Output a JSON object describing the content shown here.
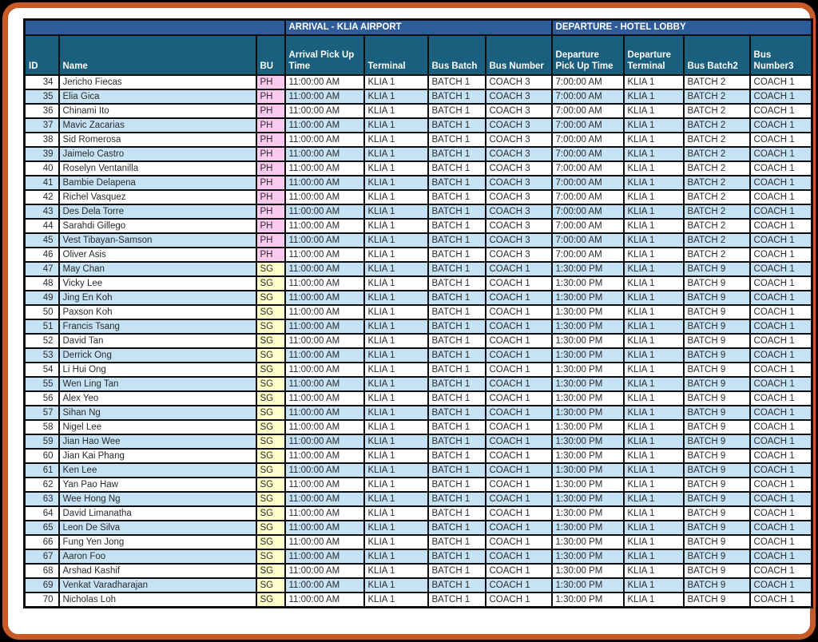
{
  "table": {
    "banner": {
      "arrival": "ARRIVAL - KLIA AIRPORT",
      "departure": "DEPARTURE - HOTEL LOBBY"
    },
    "columns": [
      "ID",
      "Name",
      "BU",
      "Arrival Pick Up Time",
      "Terminal",
      "Bus Batch",
      "Bus Number",
      "Departure Pick Up Time",
      "Departure Terminal",
      "Bus Batch2",
      "Bus Number3"
    ],
    "rows": [
      [
        34,
        "Jericho Fiecas",
        "PH",
        "11:00:00 AM",
        "KLIA 1",
        "BATCH 1",
        "COACH 3",
        "7:00:00 AM",
        "KLIA 1",
        "BATCH 2",
        "COACH 1"
      ],
      [
        35,
        "Elia Gica",
        "PH",
        "11:00:00 AM",
        "KLIA 1",
        "BATCH 1",
        "COACH 3",
        "7:00:00 AM",
        "KLIA 1",
        "BATCH 2",
        "COACH 1"
      ],
      [
        36,
        "Chinami Ito",
        "PH",
        "11:00:00 AM",
        "KLIA 1",
        "BATCH 1",
        "COACH 3",
        "7:00:00 AM",
        "KLIA 1",
        "BATCH 2",
        "COACH 1"
      ],
      [
        37,
        "Mavic Zacarias",
        "PH",
        "11:00:00 AM",
        "KLIA 1",
        "BATCH 1",
        "COACH 3",
        "7:00:00 AM",
        "KLIA 1",
        "BATCH 2",
        "COACH 1"
      ],
      [
        38,
        "Sid Romerosa",
        "PH",
        "11:00:00 AM",
        "KLIA 1",
        "BATCH 1",
        "COACH 3",
        "7:00:00 AM",
        "KLIA 1",
        "BATCH 2",
        "COACH 1"
      ],
      [
        39,
        "Jaimelo Castro",
        "PH",
        "11:00:00 AM",
        "KLIA 1",
        "BATCH 1",
        "COACH 3",
        "7:00:00 AM",
        "KLIA 1",
        "BATCH 2",
        "COACH 1"
      ],
      [
        40,
        "Roselyn Ventanilla",
        "PH",
        "11:00:00 AM",
        "KLIA 1",
        "BATCH 1",
        "COACH 3",
        "7:00:00 AM",
        "KLIA 1",
        "BATCH 2",
        "COACH 1"
      ],
      [
        41,
        "Bambie Delapena",
        "PH",
        "11:00:00 AM",
        "KLIA 1",
        "BATCH 1",
        "COACH 3",
        "7:00:00 AM",
        "KLIA 1",
        "BATCH 2",
        "COACH 1"
      ],
      [
        42,
        "Richel Vasquez",
        "PH",
        "11:00:00 AM",
        "KLIA 1",
        "BATCH 1",
        "COACH 3",
        "7:00:00 AM",
        "KLIA 1",
        "BATCH 2",
        "COACH 1"
      ],
      [
        43,
        "Des Dela Torre",
        "PH",
        "11:00:00 AM",
        "KLIA 1",
        "BATCH 1",
        "COACH 3",
        "7:00:00 AM",
        "KLIA 1",
        "BATCH 2",
        "COACH 1"
      ],
      [
        44,
        "Sarahdi Gillego",
        "PH",
        "11:00:00 AM",
        "KLIA 1",
        "BATCH 1",
        "COACH 3",
        "7:00:00 AM",
        "KLIA 1",
        "BATCH 2",
        "COACH 1"
      ],
      [
        45,
        "Vest Tibayan-Samson",
        "PH",
        "11:00:00 AM",
        "KLIA 1",
        "BATCH 1",
        "COACH 3",
        "7:00:00 AM",
        "KLIA 1",
        "BATCH 2",
        "COACH 1"
      ],
      [
        46,
        "Oliver Asis",
        "PH",
        "11:00:00 AM",
        "KLIA 1",
        "BATCH 1",
        "COACH 3",
        "7:00:00 AM",
        "KLIA 1",
        "BATCH 2",
        "COACH 1"
      ],
      [
        47,
        "May Chan",
        "SG",
        "11:00:00 AM",
        "KLIA 1",
        "BATCH 1",
        "COACH 1",
        "1:30:00 PM",
        "KLIA 1",
        "BATCH 9",
        "COACH 1"
      ],
      [
        48,
        "Vicky Lee",
        "SG",
        "11:00:00 AM",
        "KLIA 1",
        "BATCH 1",
        "COACH 1",
        "1:30:00 PM",
        "KLIA 1",
        "BATCH 9",
        "COACH 1"
      ],
      [
        49,
        "Jing En Koh",
        "SG",
        "11:00:00 AM",
        "KLIA 1",
        "BATCH 1",
        "COACH 1",
        "1:30:00 PM",
        "KLIA 1",
        "BATCH 9",
        "COACH 1"
      ],
      [
        50,
        "Paxson Koh",
        "SG",
        "11:00:00 AM",
        "KLIA 1",
        "BATCH 1",
        "COACH 1",
        "1:30:00 PM",
        "KLIA 1",
        "BATCH 9",
        "COACH 1"
      ],
      [
        51,
        "Francis Tsang",
        "SG",
        "11:00:00 AM",
        "KLIA 1",
        "BATCH 1",
        "COACH 1",
        "1:30:00 PM",
        "KLIA 1",
        "BATCH 9",
        "COACH 1"
      ],
      [
        52,
        "David Tan",
        "SG",
        "11:00:00 AM",
        "KLIA 1",
        "BATCH 1",
        "COACH 1",
        "1:30:00 PM",
        "KLIA 1",
        "BATCH 9",
        "COACH 1"
      ],
      [
        53,
        "Derrick Ong",
        "SG",
        "11:00:00 AM",
        "KLIA 1",
        "BATCH 1",
        "COACH 1",
        "1:30:00 PM",
        "KLIA 1",
        "BATCH 9",
        "COACH 1"
      ],
      [
        54,
        "Li Hui Ong",
        "SG",
        "11:00:00 AM",
        "KLIA 1",
        "BATCH 1",
        "COACH 1",
        "1:30:00 PM",
        "KLIA 1",
        "BATCH 9",
        "COACH 1"
      ],
      [
        55,
        "Wen Ling Tan",
        "SG",
        "11:00:00 AM",
        "KLIA 1",
        "BATCH 1",
        "COACH 1",
        "1:30:00 PM",
        "KLIA 1",
        "BATCH 9",
        "COACH 1"
      ],
      [
        56,
        "Alex Yeo",
        "SG",
        "11:00:00 AM",
        "KLIA 1",
        "BATCH 1",
        "COACH 1",
        "1:30:00 PM",
        "KLIA 1",
        "BATCH 9",
        "COACH 1"
      ],
      [
        57,
        "Sihan Ng",
        "SG",
        "11:00:00 AM",
        "KLIA 1",
        "BATCH 1",
        "COACH 1",
        "1:30:00 PM",
        "KLIA 1",
        "BATCH 9",
        "COACH 1"
      ],
      [
        58,
        "Nigel Lee",
        "SG",
        "11:00:00 AM",
        "KLIA 1",
        "BATCH 1",
        "COACH 1",
        "1:30:00 PM",
        "KLIA 1",
        "BATCH 9",
        "COACH 1"
      ],
      [
        59,
        "Jian Hao Wee",
        "SG",
        "11:00:00 AM",
        "KLIA 1",
        "BATCH 1",
        "COACH 1",
        "1:30:00 PM",
        "KLIA 1",
        "BATCH 9",
        "COACH 1"
      ],
      [
        60,
        "Jian Kai Phang",
        "SG",
        "11:00:00 AM",
        "KLIA 1",
        "BATCH 1",
        "COACH 1",
        "1:30:00 PM",
        "KLIA 1",
        "BATCH 9",
        "COACH 1"
      ],
      [
        61,
        "Ken Lee",
        "SG",
        "11:00:00 AM",
        "KLIA 1",
        "BATCH 1",
        "COACH 1",
        "1:30:00 PM",
        "KLIA 1",
        "BATCH 9",
        "COACH 1"
      ],
      [
        62,
        "Yan Pao Haw",
        "SG",
        "11:00:00 AM",
        "KLIA 1",
        "BATCH 1",
        "COACH 1",
        "1:30:00 PM",
        "KLIA 1",
        "BATCH 9",
        "COACH 1"
      ],
      [
        63,
        "Wee Hong Ng",
        "SG",
        "11:00:00 AM",
        "KLIA 1",
        "BATCH 1",
        "COACH 1",
        "1:30:00 PM",
        "KLIA 1",
        "BATCH 9",
        "COACH 1"
      ],
      [
        64,
        "David Limanatha",
        "SG",
        "11:00:00 AM",
        "KLIA 1",
        "BATCH 1",
        "COACH 1",
        "1:30:00 PM",
        "KLIA 1",
        "BATCH 9",
        "COACH 1"
      ],
      [
        65,
        "Leon De Silva",
        "SG",
        "11:00:00 AM",
        "KLIA 1",
        "BATCH 1",
        "COACH 1",
        "1:30:00 PM",
        "KLIA 1",
        "BATCH 9",
        "COACH 1"
      ],
      [
        66,
        "Fung Yen Jong",
        "SG",
        "11:00:00 AM",
        "KLIA 1",
        "BATCH 1",
        "COACH 1",
        "1:30:00 PM",
        "KLIA 1",
        "BATCH 9",
        "COACH 1"
      ],
      [
        67,
        "Aaron Foo",
        "SG",
        "11:00:00 AM",
        "KLIA 1",
        "BATCH 1",
        "COACH 1",
        "1:30:00 PM",
        "KLIA 1",
        "BATCH 9",
        "COACH 1"
      ],
      [
        68,
        "Arshad Kashif",
        "SG",
        "11:00:00 AM",
        "KLIA 1",
        "BATCH 1",
        "COACH 1",
        "1:30:00 PM",
        "KLIA 1",
        "BATCH 9",
        "COACH 1"
      ],
      [
        69,
        "Venkat Varadharajan",
        "SG",
        "11:00:00 AM",
        "KLIA 1",
        "BATCH 1",
        "COACH 1",
        "1:30:00 PM",
        "KLIA 1",
        "BATCH 9",
        "COACH 1"
      ],
      [
        70,
        "Nicholas Loh",
        "SG",
        "11:00:00 AM",
        "KLIA 1",
        "BATCH 1",
        "COACH 1",
        "1:30:00 PM",
        "KLIA 1",
        "BATCH 9",
        "COACH 1"
      ]
    ]
  },
  "colors": {
    "frame_orange": "#C75B28",
    "banner_blue": "#2D5C9C",
    "header_teal": "#1A5F7D",
    "stripe_blue": "#C5E3F5",
    "stripe_white": "#FFFFFF",
    "grid_black": "#0D0D0D",
    "header_text": "#FFFFFF",
    "cell_text": "#2B2B2B",
    "bu_fill": {
      "PH": "#F9C9EE",
      "SG": "#FFFFCB"
    }
  }
}
